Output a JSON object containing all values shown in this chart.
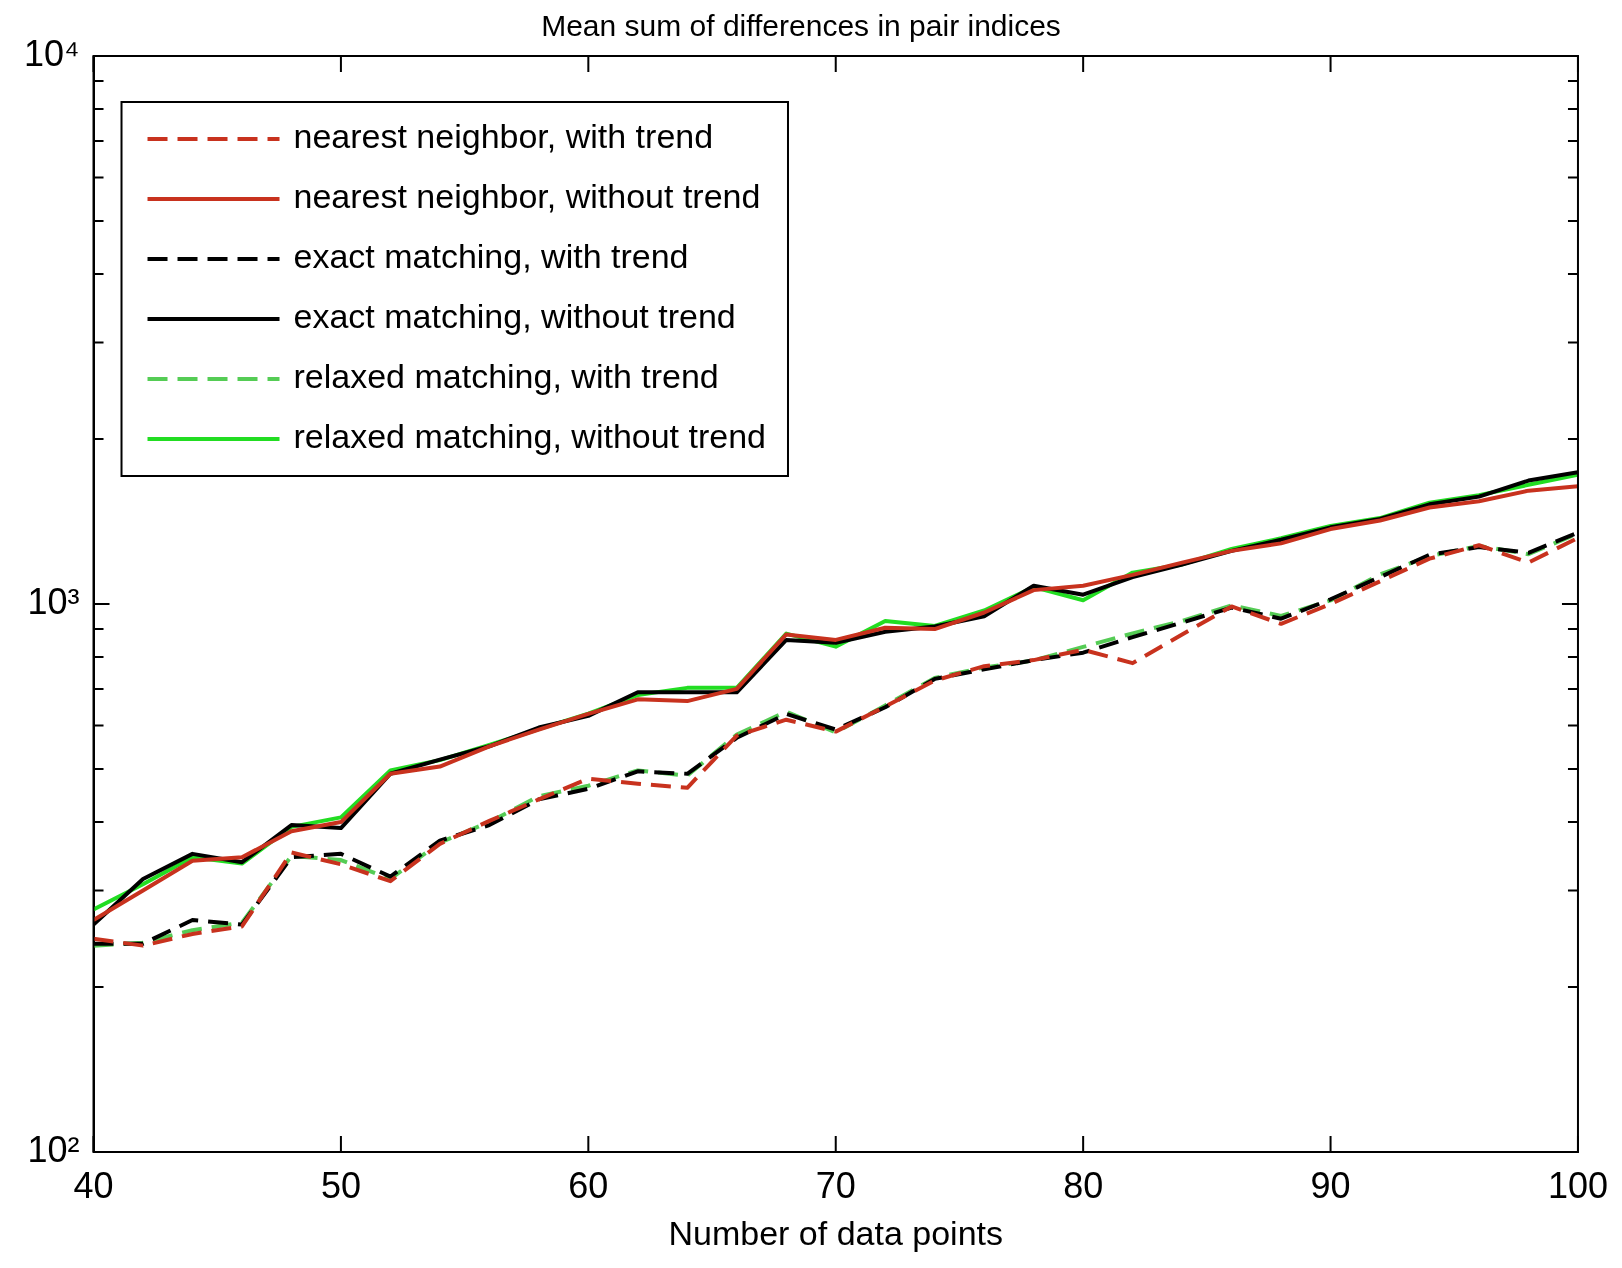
{
  "chart_data": {
    "type": "line",
    "title": "Mean sum of differences in pair indices",
    "xlabel": "Number of data points",
    "x": [
      40,
      42,
      44,
      46,
      48,
      50,
      52,
      54,
      56,
      58,
      60,
      62,
      64,
      66,
      68,
      70,
      72,
      74,
      76,
      78,
      80,
      82,
      84,
      86,
      88,
      90,
      92,
      94,
      96,
      98,
      100
    ],
    "xlim": [
      40,
      100
    ],
    "xticks": [
      40,
      50,
      60,
      70,
      80,
      90,
      100
    ],
    "ylim": [
      100,
      10000
    ],
    "log": true,
    "yticks": [
      {
        "value": 100,
        "label": "10²"
      },
      {
        "value": 200,
        "label": null
      },
      {
        "value": 300,
        "label": null
      },
      {
        "value": 400,
        "label": null
      },
      {
        "value": 500,
        "label": null
      },
      {
        "value": 600,
        "label": null
      },
      {
        "value": 700,
        "label": null
      },
      {
        "value": 800,
        "label": null
      },
      {
        "value": 900,
        "label": null
      },
      {
        "value": 1000,
        "label": "10³"
      },
      {
        "value": 2000,
        "label": null
      },
      {
        "value": 3000,
        "label": null
      },
      {
        "value": 4000,
        "label": null
      },
      {
        "value": 5000,
        "label": null
      },
      {
        "value": 6000,
        "label": null
      },
      {
        "value": 7000,
        "label": null
      },
      {
        "value": 8000,
        "label": null
      },
      {
        "value": 9000,
        "label": null
      },
      {
        "value": 10000,
        "label": "10⁴"
      }
    ],
    "grid": false,
    "legend": "top left",
    "marker": "none",
    "series": [
      {
        "name": "nearest neighbor, with trend",
        "color": "#c8321e",
        "line_style": "dashed",
        "values": [
          245,
          238,
          250,
          258,
          352,
          335,
          312,
          365,
          402,
          440,
          480,
          470,
          462,
          575,
          615,
          585,
          650,
          725,
          770,
          790,
          825,
          780,
          880,
          990,
          920,
          1000,
          1100,
          1210,
          1280,
          1190,
          1320
        ]
      },
      {
        "name": "nearest neighbor, without trend",
        "color": "#c8321e",
        "line_style": "solid",
        "values": [
          265,
          300,
          340,
          345,
          385,
          400,
          490,
          505,
          550,
          590,
          630,
          670,
          665,
          700,
          880,
          860,
          905,
          900,
          965,
          1060,
          1080,
          1130,
          1190,
          1250,
          1290,
          1370,
          1420,
          1500,
          1540,
          1610,
          1640
        ]
      },
      {
        "name": "exact matching, with trend",
        "color": "#000000",
        "line_style": "dashed",
        "values": [
          240,
          240,
          265,
          260,
          345,
          350,
          318,
          370,
          395,
          440,
          460,
          495,
          490,
          570,
          630,
          590,
          648,
          730,
          760,
          790,
          815,
          870,
          925,
          985,
          940,
          1020,
          1120,
          1230,
          1270,
          1240,
          1350
        ]
      },
      {
        "name": "exact matching, without trend",
        "color": "#000000",
        "line_style": "solid",
        "values": [
          260,
          315,
          350,
          338,
          395,
          390,
          490,
          520,
          550,
          595,
          625,
          690,
          690,
          690,
          860,
          850,
          890,
          910,
          950,
          1080,
          1040,
          1120,
          1180,
          1250,
          1310,
          1380,
          1430,
          1520,
          1570,
          1680,
          1740
        ]
      },
      {
        "name": "relaxed matching, with trend",
        "color": "#55cc55",
        "line_style": "dashed",
        "values": [
          238,
          241,
          254,
          262,
          347,
          341,
          315,
          367,
          400,
          446,
          466,
          497,
          486,
          578,
          636,
          583,
          653,
          733,
          766,
          789,
          835,
          884,
          931,
          994,
          951,
          1015,
          1132,
          1223,
          1276,
          1233,
          1345
        ]
      },
      {
        "name": "relaxed matching, without trend",
        "color": "#22dd22",
        "line_style": "solid",
        "values": [
          277,
          308,
          345,
          336,
          392,
          408,
          497,
          519,
          553,
          591,
          631,
          682,
          703,
          703,
          883,
          836,
          931,
          912,
          973,
          1074,
          1016,
          1141,
          1181,
          1260,
          1318,
          1388,
          1435,
          1531,
          1580,
          1650,
          1722
        ]
      }
    ]
  }
}
